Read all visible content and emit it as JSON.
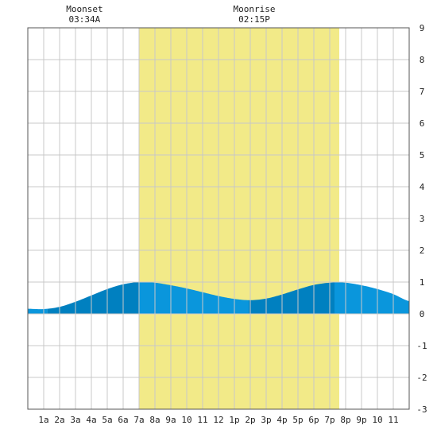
{
  "chart_data": {
    "type": "area",
    "title": "",
    "xlabel": "",
    "ylabel": "",
    "xlim": [
      0,
      24
    ],
    "ylim": [
      -3,
      9
    ],
    "x_tick_labels": [
      "1a",
      "2a",
      "3a",
      "4a",
      "5a",
      "6a",
      "7a",
      "8a",
      "9a",
      "10",
      "11",
      "12",
      "1p",
      "2p",
      "3p",
      "4p",
      "5p",
      "6p",
      "7p",
      "8p",
      "9p",
      "10",
      "11"
    ],
    "y_tick_labels": [
      "9",
      "8",
      "7",
      "6",
      "5",
      "4",
      "3",
      "2",
      "1",
      "0",
      "-1",
      "-2",
      "-3"
    ],
    "y_ticks": [
      9,
      8,
      7,
      6,
      5,
      4,
      3,
      2,
      1,
      0,
      -1,
      -2,
      -3
    ],
    "grid": true,
    "daylight": {
      "start_hour": 7.0,
      "end_hour": 19.6
    },
    "tide_segments_hours": [
      0.0,
      1.23,
      7.0,
      13.9,
      19.3,
      24.0
    ],
    "tide": {
      "x_hours": [
        0,
        1,
        2,
        3,
        4,
        5,
        6,
        7,
        8,
        9,
        10,
        11,
        12,
        13,
        14,
        15,
        16,
        17,
        18,
        19,
        20,
        21,
        22,
        23,
        24
      ],
      "y_ft": [
        0.16,
        0.15,
        0.22,
        0.38,
        0.58,
        0.78,
        0.93,
        1.0,
        0.98,
        0.9,
        0.8,
        0.68,
        0.56,
        0.47,
        0.43,
        0.48,
        0.61,
        0.77,
        0.91,
        0.98,
        0.98,
        0.9,
        0.78,
        0.62,
        0.4
      ]
    },
    "events": [
      {
        "label": "Moonset",
        "time": "03:34A",
        "hour": 3.57
      },
      {
        "label": "Moonrise",
        "time": "02:15P",
        "hour": 14.25
      }
    ],
    "colors": {
      "daylight": "#f2ea88",
      "tide_light": "#0a96dc",
      "tide_dark": "#0080c0",
      "grid": "#c8c8c8",
      "axis": "#555555"
    }
  }
}
